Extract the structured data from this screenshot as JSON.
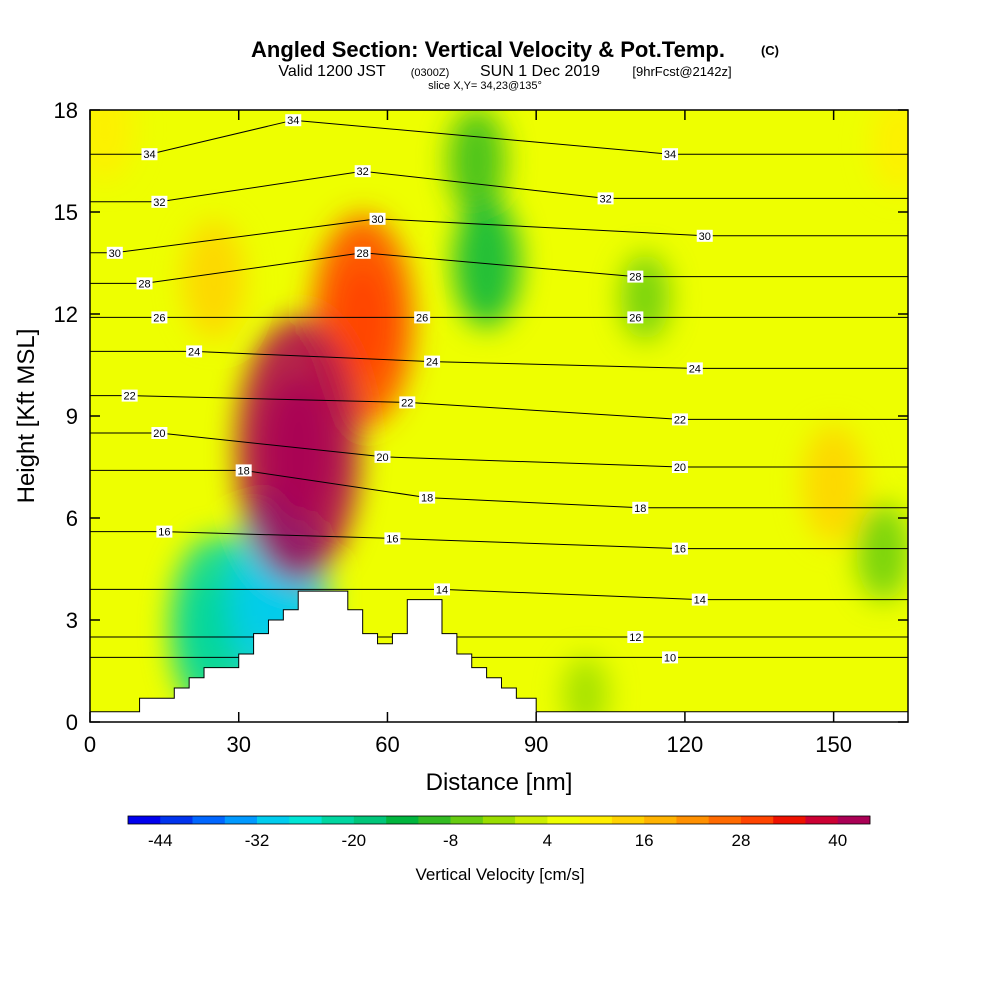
{
  "header": {
    "title_main": "Angled Section: Vertical Velocity & Pot.Temp.",
    "title_unit": "(C)",
    "valid_a": "Valid 1200 JST",
    "valid_b": "(0300Z)",
    "valid_c": "SUN 1 Dec 2019",
    "valid_d": "[9hrFcst@2142z]",
    "slice": "slice X,Y= 34,23@135°"
  },
  "chart_data": {
    "type": "heatmap",
    "xlabel": "Distance [nm]",
    "ylabel": "Height [Kft MSL]",
    "xlim": [
      0,
      165
    ],
    "ylim": [
      0,
      18
    ],
    "x_ticks": [
      0,
      30,
      60,
      90,
      120,
      150
    ],
    "y_ticks": [
      0,
      3,
      6,
      9,
      12,
      15,
      18
    ],
    "colorbar": {
      "title": "Vertical Velocity [cm/s]",
      "range": [
        -48,
        44
      ],
      "step": 4,
      "tick_values": [
        -44,
        -32,
        -20,
        -8,
        4,
        16,
        28,
        40
      ],
      "tick_labels": [
        "-44",
        "-32",
        "-20",
        "-8",
        "4",
        "16",
        "28",
        "40"
      ],
      "colors": [
        "#0000ee",
        "#0033ee",
        "#0066ff",
        "#0099ff",
        "#00ccee",
        "#00e5d5",
        "#00d6a0",
        "#00c67a",
        "#00b53e",
        "#33bb22",
        "#66cc11",
        "#99dd00",
        "#ccee00",
        "#eeff00",
        "#ffee00",
        "#ffd200",
        "#ffb300",
        "#ff9000",
        "#ff6a00",
        "#ff4400",
        "#ee1100",
        "#cc0033",
        "#aa0055",
        "#880077",
        "#660099"
      ]
    },
    "velocity_features": [
      {
        "x": 42,
        "y": 8.0,
        "value": 40
      },
      {
        "x": 55,
        "y": 11.8,
        "value": 30
      },
      {
        "x": 38,
        "y": 3.8,
        "value": -30
      },
      {
        "x": 25,
        "y": 2.8,
        "value": -24
      },
      {
        "x": 80,
        "y": 13.5,
        "value": -14
      },
      {
        "x": 78,
        "y": 16.5,
        "value": -10
      },
      {
        "x": 150,
        "y": 7.0,
        "value": 12
      },
      {
        "x": 100,
        "y": 0.8,
        "value": -4
      },
      {
        "x": 160,
        "y": 5.0,
        "value": -8
      },
      {
        "x": 25,
        "y": 13.0,
        "value": 12
      },
      {
        "x": 3,
        "y": 17.5,
        "value": 10
      },
      {
        "x": 163,
        "y": 17.0,
        "value": 8
      },
      {
        "x": 112,
        "y": 12.5,
        "value": -6
      }
    ],
    "terrain": [
      [
        0,
        0.3
      ],
      [
        10,
        0.3
      ],
      [
        10,
        0.7
      ],
      [
        17,
        0.7
      ],
      [
        17,
        1.0
      ],
      [
        20,
        1.0
      ],
      [
        20,
        1.3
      ],
      [
        23,
        1.3
      ],
      [
        23,
        1.6
      ],
      [
        30,
        1.6
      ],
      [
        30,
        2.0
      ],
      [
        33,
        2.0
      ],
      [
        33,
        2.6
      ],
      [
        36,
        2.6
      ],
      [
        36,
        3.0
      ],
      [
        39,
        3.0
      ],
      [
        39,
        3.3
      ],
      [
        42,
        3.3
      ],
      [
        42,
        3.85
      ],
      [
        52,
        3.85
      ],
      [
        52,
        3.3
      ],
      [
        55,
        3.3
      ],
      [
        55,
        2.6
      ],
      [
        58,
        2.6
      ],
      [
        58,
        2.3
      ],
      [
        61,
        2.3
      ],
      [
        61,
        2.6
      ],
      [
        64,
        2.6
      ],
      [
        64,
        3.6
      ],
      [
        71,
        3.6
      ],
      [
        71,
        2.6
      ],
      [
        74,
        2.6
      ],
      [
        74,
        2.0
      ],
      [
        77,
        2.0
      ],
      [
        77,
        1.6
      ],
      [
        80,
        1.6
      ],
      [
        80,
        1.3
      ],
      [
        83,
        1.3
      ],
      [
        83,
        1.0
      ],
      [
        86,
        1.0
      ],
      [
        86,
        0.7
      ],
      [
        90,
        0.7
      ],
      [
        90,
        0.3
      ],
      [
        165,
        0.3
      ]
    ],
    "theta_labels": [
      {
        "text": "34",
        "x": 41,
        "y": 17.7
      },
      {
        "text": "34",
        "x": 12,
        "y": 16.7
      },
      {
        "text": "34",
        "x": 117,
        "y": 16.7
      },
      {
        "text": "32",
        "x": 55,
        "y": 16.2
      },
      {
        "text": "32",
        "x": 14,
        "y": 15.3
      },
      {
        "text": "32",
        "x": 104,
        "y": 15.4
      },
      {
        "text": "30",
        "x": 58,
        "y": 14.8
      },
      {
        "text": "30",
        "x": 5,
        "y": 13.8
      },
      {
        "text": "30",
        "x": 124,
        "y": 14.3
      },
      {
        "text": "28",
        "x": 55,
        "y": 13.8
      },
      {
        "text": "28",
        "x": 11,
        "y": 12.9
      },
      {
        "text": "28",
        "x": 110,
        "y": 13.1
      },
      {
        "text": "26",
        "x": 67,
        "y": 11.9
      },
      {
        "text": "26",
        "x": 14,
        "y": 11.9
      },
      {
        "text": "26",
        "x": 110,
        "y": 11.9
      },
      {
        "text": "24",
        "x": 69,
        "y": 10.6
      },
      {
        "text": "24",
        "x": 21,
        "y": 10.9
      },
      {
        "text": "24",
        "x": 122,
        "y": 10.4
      },
      {
        "text": "22",
        "x": 64,
        "y": 9.4
      },
      {
        "text": "22",
        "x": 8,
        "y": 9.6
      },
      {
        "text": "22",
        "x": 119,
        "y": 8.9
      },
      {
        "text": "20",
        "x": 59,
        "y": 7.8
      },
      {
        "text": "20",
        "x": 14,
        "y": 8.5
      },
      {
        "text": "20",
        "x": 119,
        "y": 7.5
      },
      {
        "text": "18",
        "x": 68,
        "y": 6.6
      },
      {
        "text": "18",
        "x": 31,
        "y": 7.4
      },
      {
        "text": "18",
        "x": 111,
        "y": 6.3
      },
      {
        "text": "16",
        "x": 61,
        "y": 5.4
      },
      {
        "text": "16",
        "x": 15,
        "y": 5.6
      },
      {
        "text": "16",
        "x": 119,
        "y": 5.1
      },
      {
        "text": "14",
        "x": 71,
        "y": 3.9
      },
      {
        "text": "14",
        "x": 123,
        "y": 3.6
      },
      {
        "text": "12",
        "x": 110,
        "y": 2.5
      },
      {
        "text": "10",
        "x": 117,
        "y": 1.9
      }
    ]
  }
}
